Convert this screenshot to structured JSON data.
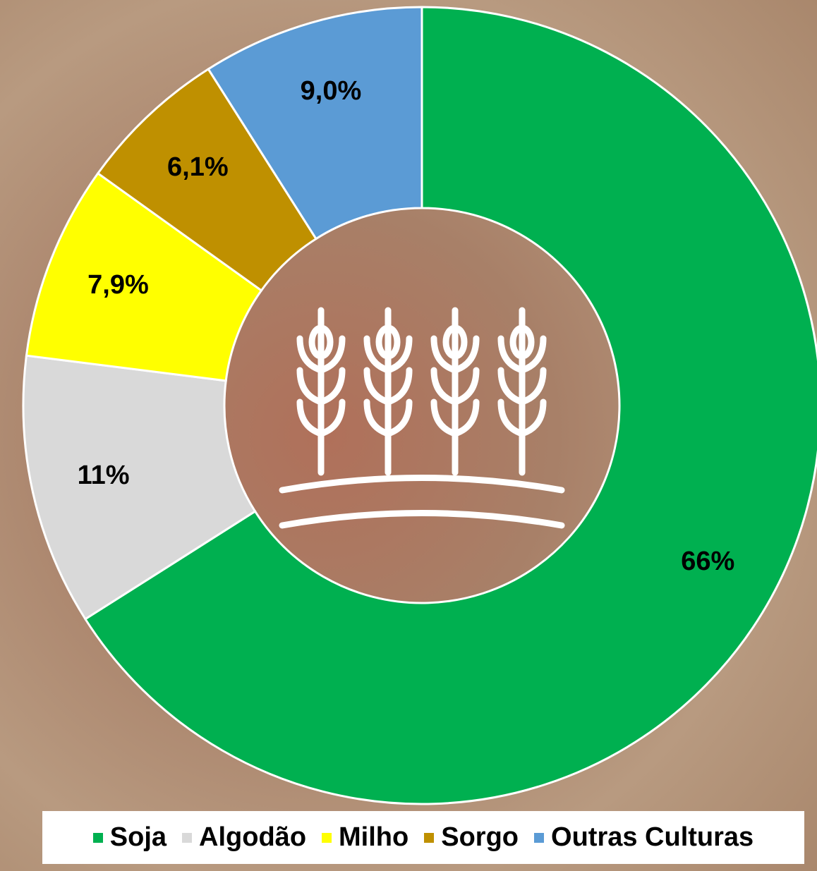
{
  "chart_data": {
    "type": "donut",
    "categories": [
      "Soja",
      "Algodão",
      "Milho",
      "Sorgo",
      "Outras Culturas"
    ],
    "values": [
      66,
      11,
      7.9,
      6.1,
      9.0
    ],
    "value_labels": [
      "66%",
      "11%",
      "7,9%",
      "6,1%",
      "9,0%"
    ],
    "colors": [
      "#00b050",
      "#d9d9d9",
      "#ffff00",
      "#bf9000",
      "#5b9bd5"
    ]
  }
}
